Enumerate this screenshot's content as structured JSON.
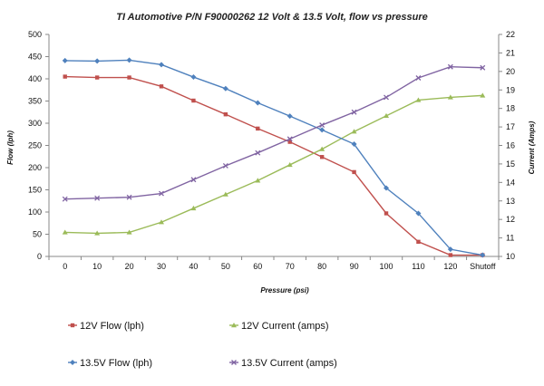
{
  "chart_data": {
    "type": "line",
    "title": "TI Automotive P/N F90000262  12 Volt & 13.5 Volt, flow vs pressure",
    "xlabel": "Pressure (psi)",
    "ylabel": "Flow (lph)",
    "y2label": "Current  (Amps)",
    "categories": [
      "0",
      "10",
      "20",
      "30",
      "40",
      "50",
      "60",
      "70",
      "80",
      "90",
      "100",
      "110",
      "120",
      "Shutoff"
    ],
    "ylim": [
      0,
      500
    ],
    "y_ticks": [
      0,
      50,
      100,
      150,
      200,
      250,
      300,
      350,
      400,
      450,
      500
    ],
    "y2lim": [
      10,
      22
    ],
    "y2_ticks": [
      10,
      11,
      12,
      13,
      14,
      15,
      16,
      17,
      18,
      19,
      20,
      21,
      22
    ],
    "grid": false,
    "legend_position": "bottom",
    "series": [
      {
        "name": "12V Flow (lph)",
        "axis": "left",
        "color": "#c0504d",
        "marker": "square",
        "values": [
          405,
          403,
          403,
          383,
          351,
          320,
          288,
          258,
          224,
          190,
          97,
          33,
          3,
          3
        ]
      },
      {
        "name": "12V Current (amps)",
        "axis": "right",
        "color": "#9bbb59",
        "marker": "triangle",
        "values": [
          11.3,
          11.25,
          11.3,
          11.85,
          12.6,
          13.35,
          14.1,
          14.95,
          15.8,
          16.75,
          17.6,
          18.45,
          18.6,
          18.7
        ]
      },
      {
        "name": "13.5V Flow (lph)",
        "axis": "left",
        "color": "#4f81bd",
        "marker": "diamond",
        "values": [
          441,
          440,
          442,
          432,
          404,
          378,
          346,
          316,
          285,
          253,
          154,
          97,
          16,
          3
        ]
      },
      {
        "name": "13.5V Current (amps)",
        "axis": "right",
        "color": "#8064a2",
        "marker": "x",
        "values": [
          13.1,
          13.15,
          13.2,
          13.4,
          14.15,
          14.9,
          15.6,
          16.35,
          17.1,
          17.8,
          18.6,
          19.65,
          20.25,
          20.2
        ]
      }
    ]
  }
}
